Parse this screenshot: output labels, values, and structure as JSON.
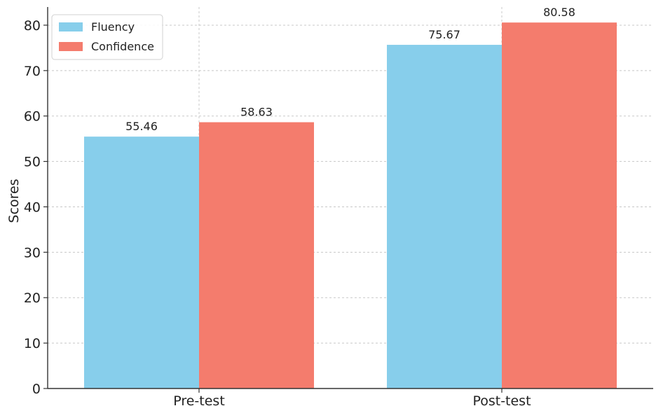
{
  "chart_data": {
    "type": "bar",
    "title": "",
    "xlabel": "",
    "ylabel": "Scores",
    "categories": [
      "Pre-test",
      "Post-test"
    ],
    "series": [
      {
        "name": "Fluency",
        "values": [
          55.46,
          75.67
        ],
        "color": "#87CEEB"
      },
      {
        "name": "Confidence",
        "values": [
          58.63,
          80.58
        ],
        "color": "#F47C6D"
      }
    ],
    "value_labels": [
      [
        "55.46",
        "75.67"
      ],
      [
        "58.63",
        "80.58"
      ]
    ],
    "ylim": [
      0,
      84
    ],
    "yticks": [
      0,
      10,
      20,
      30,
      40,
      50,
      60,
      70,
      80
    ],
    "grid": true,
    "legend_position": "top-left"
  }
}
